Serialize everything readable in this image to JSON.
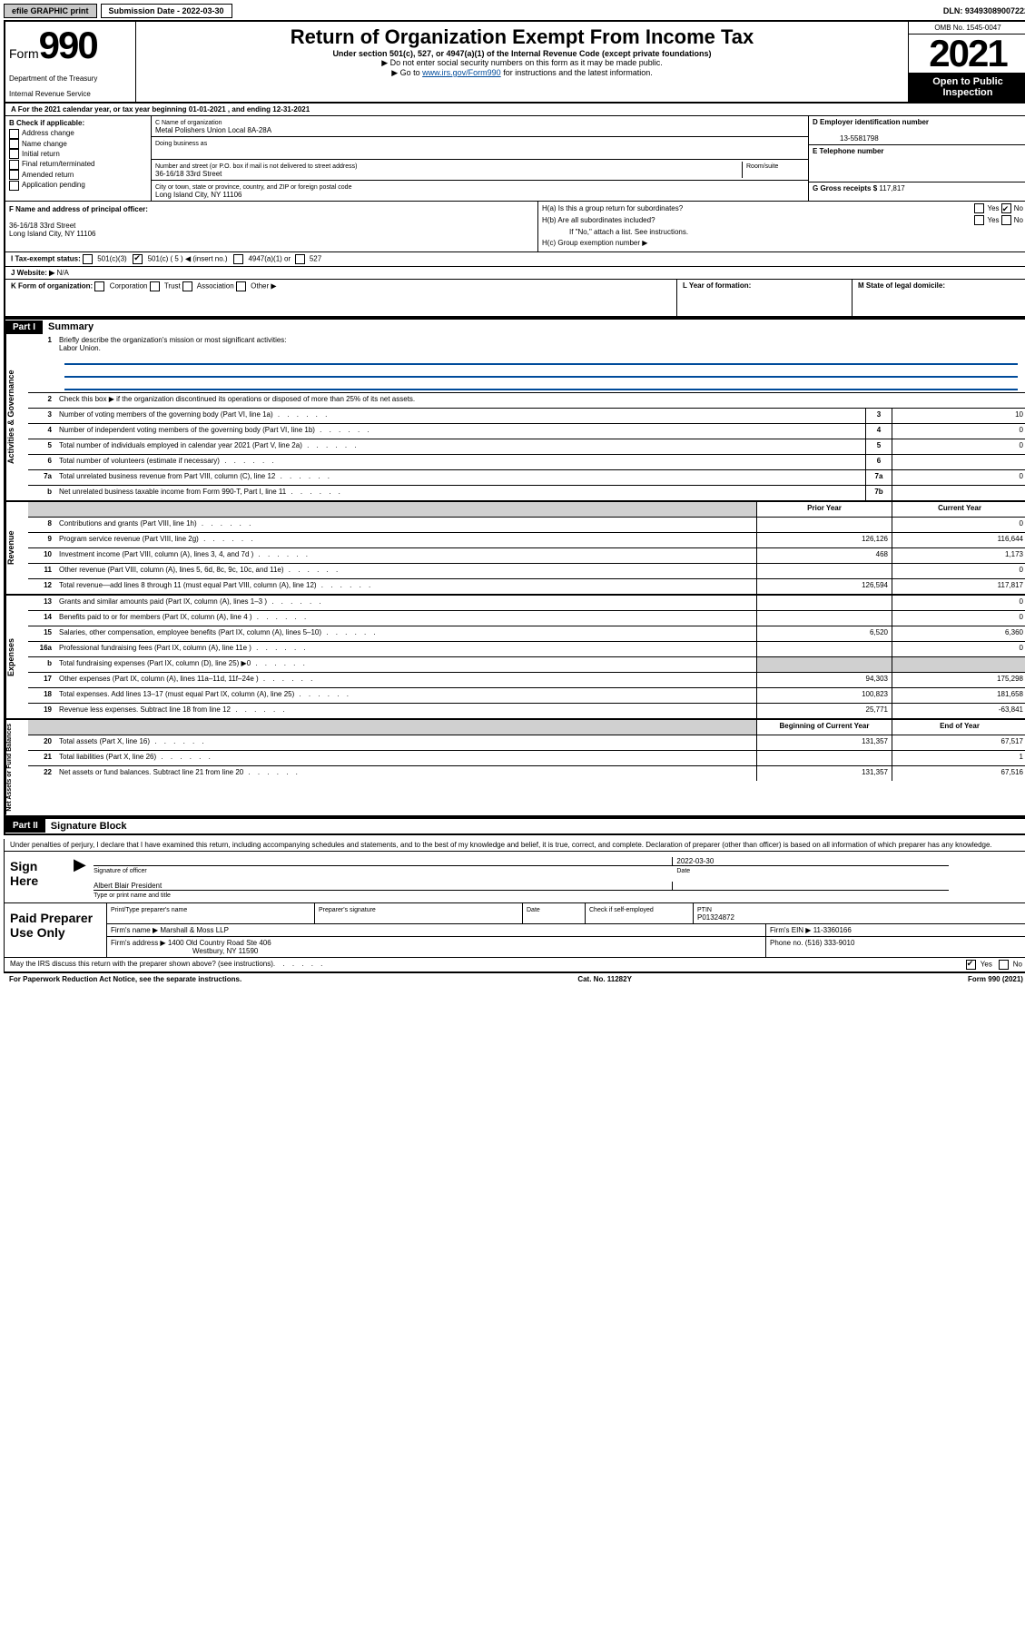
{
  "topbar": {
    "efile": "efile GRAPHIC print",
    "sub_label": "Submission Date - 2022-03-30",
    "dln": "DLN: 93493089007222"
  },
  "header": {
    "form_word": "Form",
    "form_num": "990",
    "title": "Return of Organization Exempt From Income Tax",
    "subtitle": "Under section 501(c), 527, or 4947(a)(1) of the Internal Revenue Code (except private foundations)",
    "note1": "▶ Do not enter social security numbers on this form as it may be made public.",
    "note2_pre": "▶ Go to ",
    "note2_link": "www.irs.gov/Form990",
    "note2_post": " for instructions and the latest information.",
    "dept": "Department of the Treasury",
    "irs": "Internal Revenue Service",
    "omb": "OMB No. 1545-0047",
    "year": "2021",
    "open": "Open to Public Inspection"
  },
  "line_a": "A For the 2021 calendar year, or tax year beginning 01-01-2021    , and ending 12-31-2021",
  "box_b": {
    "title": "B Check if applicable:",
    "opts": [
      "Address change",
      "Name change",
      "Initial return",
      "Final return/terminated",
      "Amended return",
      "Application pending"
    ]
  },
  "box_c": {
    "label": "C Name of organization",
    "name": "Metal Polishers Union Local 8A-28A",
    "dba_label": "Doing business as",
    "addr_label": "Number and street (or P.O. box if mail is not delivered to street address)",
    "room_label": "Room/suite",
    "addr": "36-16/18 33rd Street",
    "city_label": "City or town, state or province, country, and ZIP or foreign postal code",
    "city": "Long Island City, NY  11106"
  },
  "box_d": {
    "label": "D Employer identification number",
    "ein": "13-5581798"
  },
  "box_e": {
    "label": "E Telephone number"
  },
  "box_g": {
    "label": "G Gross receipts $",
    "val": "117,817"
  },
  "box_f": {
    "label": "F Name and address of principal officer:",
    "addr1": "36-16/18 33rd Street",
    "addr2": "Long Island City, NY  11106"
  },
  "box_h": {
    "a": "H(a)  Is this a group return for subordinates?",
    "b": "H(b)  Are all subordinates included?",
    "note": "If \"No,\" attach a list. See instructions.",
    "c": "H(c)  Group exemption number ▶",
    "yes": "Yes",
    "no": "No"
  },
  "line_i": {
    "label": "I     Tax-exempt status:",
    "o1": "501(c)(3)",
    "o2": "501(c) ( 5 ) ◀ (insert no.)",
    "o3": "4947(a)(1) or",
    "o4": "527"
  },
  "line_j": {
    "label": "J    Website: ▶",
    "val": "N/A"
  },
  "line_k": {
    "label": "K Form of organization:",
    "opts": [
      "Corporation",
      "Trust",
      "Association",
      "Other ▶"
    ],
    "l": "L Year of formation:",
    "m": "M State of legal domicile:"
  },
  "part1": {
    "header": "Part I",
    "title": "Summary"
  },
  "s1": {
    "label": "Briefly describe the organization's mission or most significant activities:",
    "val": "Labor Union."
  },
  "s2": "Check this box ▶        if the organization discontinued its operations or disposed of more than 25% of its net assets.",
  "vlabels": {
    "ag": "Activities & Governance",
    "rev": "Revenue",
    "exp": "Expenses",
    "net": "Net Assets or Fund Balances"
  },
  "cols": {
    "prior": "Prior Year",
    "current": "Current Year",
    "beg": "Beginning of Current Year",
    "end": "End of Year"
  },
  "rows_ag": [
    {
      "n": "3",
      "d": "Number of voting members of the governing body (Part VI, line 1a)",
      "k": "3",
      "v": "10"
    },
    {
      "n": "4",
      "d": "Number of independent voting members of the governing body (Part VI, line 1b)",
      "k": "4",
      "v": "0"
    },
    {
      "n": "5",
      "d": "Total number of individuals employed in calendar year 2021 (Part V, line 2a)",
      "k": "5",
      "v": "0"
    },
    {
      "n": "6",
      "d": "Total number of volunteers (estimate if necessary)",
      "k": "6",
      "v": ""
    },
    {
      "n": "7a",
      "d": "Total unrelated business revenue from Part VIII, column (C), line 12",
      "k": "7a",
      "v": "0"
    },
    {
      "n": "b",
      "d": "Net unrelated business taxable income from Form 990-T, Part I, line 11",
      "k": "7b",
      "v": ""
    }
  ],
  "rows_rev": [
    {
      "n": "8",
      "d": "Contributions and grants (Part VIII, line 1h)",
      "p": "",
      "c": "0"
    },
    {
      "n": "9",
      "d": "Program service revenue (Part VIII, line 2g)",
      "p": "126,126",
      "c": "116,644"
    },
    {
      "n": "10",
      "d": "Investment income (Part VIII, column (A), lines 3, 4, and 7d )",
      "p": "468",
      "c": "1,173"
    },
    {
      "n": "11",
      "d": "Other revenue (Part VIII, column (A), lines 5, 6d, 8c, 9c, 10c, and 11e)",
      "p": "",
      "c": "0"
    },
    {
      "n": "12",
      "d": "Total revenue—add lines 8 through 11 (must equal Part VIII, column (A), line 12)",
      "p": "126,594",
      "c": "117,817"
    }
  ],
  "rows_exp": [
    {
      "n": "13",
      "d": "Grants and similar amounts paid (Part IX, column (A), lines 1–3 )",
      "p": "",
      "c": "0"
    },
    {
      "n": "14",
      "d": "Benefits paid to or for members (Part IX, column (A), line 4 )",
      "p": "",
      "c": "0"
    },
    {
      "n": "15",
      "d": "Salaries, other compensation, employee benefits (Part IX, column (A), lines 5–10)",
      "p": "6,520",
      "c": "6,360"
    },
    {
      "n": "16a",
      "d": "Professional fundraising fees (Part IX, column (A), line 11e )",
      "p": "",
      "c": "0"
    },
    {
      "n": "b",
      "d": "Total fundraising expenses (Part IX, column (D), line 25) ▶0",
      "p": "grey",
      "c": "grey"
    },
    {
      "n": "17",
      "d": "Other expenses (Part IX, column (A), lines 11a–11d, 11f–24e )",
      "p": "94,303",
      "c": "175,298"
    },
    {
      "n": "18",
      "d": "Total expenses. Add lines 13–17 (must equal Part IX, column (A), line 25)",
      "p": "100,823",
      "c": "181,658"
    },
    {
      "n": "19",
      "d": "Revenue less expenses. Subtract line 18 from line 12",
      "p": "25,771",
      "c": "-63,841"
    }
  ],
  "rows_net": [
    {
      "n": "20",
      "d": "Total assets (Part X, line 16)",
      "p": "131,357",
      "c": "67,517"
    },
    {
      "n": "21",
      "d": "Total liabilities (Part X, line 26)",
      "p": "",
      "c": "1"
    },
    {
      "n": "22",
      "d": "Net assets or fund balances. Subtract line 21 from line 20",
      "p": "131,357",
      "c": "67,516"
    }
  ],
  "part2": {
    "header": "Part II",
    "title": "Signature Block"
  },
  "declare": "Under penalties of perjury, I declare that I have examined this return, including accompanying schedules and statements, and to the best of my knowledge and belief, it is true, correct, and complete. Declaration of preparer (other than officer) is based on all information of which preparer has any knowledge.",
  "sign": {
    "here": "Sign Here",
    "sig_label": "Signature of officer",
    "date": "2022-03-30",
    "date_label": "Date",
    "name": "Albert Blair  President",
    "name_label": "Type or print name and title"
  },
  "prep": {
    "label": "Paid Preparer Use Only",
    "h1": "Print/Type preparer's name",
    "h2": "Preparer's signature",
    "h3": "Date",
    "h4": "Check        if self-employed",
    "h5_label": "PTIN",
    "h5": "P01324872",
    "firm_label": "Firm's name     ▶",
    "firm": "Marshall & Moss LLP",
    "ein_label": "Firm's EIN ▶",
    "ein": "11-3360166",
    "addr_label": "Firm's address ▶",
    "addr1": "1400 Old Country Road Ste 406",
    "addr2": "Westbury, NY  11590",
    "phone_label": "Phone no.",
    "phone": "(516) 333-9010"
  },
  "footer": {
    "q": "May the IRS discuss this return with the preparer shown above? (see instructions)",
    "yes": "Yes",
    "no": "No",
    "pra": "For Paperwork Reduction Act Notice, see the separate instructions.",
    "cat": "Cat. No. 11282Y",
    "form": "Form 990 (2021)"
  }
}
